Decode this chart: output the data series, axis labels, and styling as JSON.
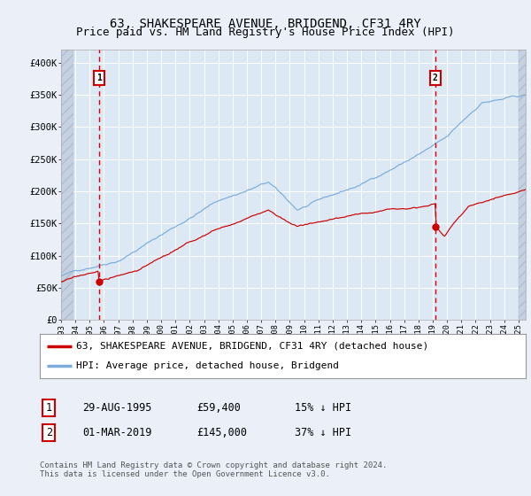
{
  "title": "63, SHAKESPEARE AVENUE, BRIDGEND, CF31 4RY",
  "subtitle": "Price paid vs. HM Land Registry's House Price Index (HPI)",
  "ylim": [
    0,
    420000
  ],
  "yticks": [
    0,
    50000,
    100000,
    150000,
    200000,
    250000,
    300000,
    350000,
    400000
  ],
  "ytick_labels": [
    "£0",
    "£50K",
    "£100K",
    "£150K",
    "£200K",
    "£250K",
    "£300K",
    "£350K",
    "£400K"
  ],
  "hpi_color": "#7aaddb",
  "price_color": "#cc0000",
  "vline_color": "#dd0000",
  "point1_year": 1995.66,
  "point1_value": 59400,
  "point2_year": 2019.17,
  "point2_value": 145000,
  "legend_line1": "63, SHAKESPEARE AVENUE, BRIDGEND, CF31 4RY (detached house)",
  "legend_line2": "HPI: Average price, detached house, Bridgend",
  "table_row1_num": "1",
  "table_row1_date": "29-AUG-1995",
  "table_row1_price": "£59,400",
  "table_row1_hpi": "15% ↓ HPI",
  "table_row2_num": "2",
  "table_row2_date": "01-MAR-2019",
  "table_row2_price": "£145,000",
  "table_row2_hpi": "37% ↓ HPI",
  "footnote": "Contains HM Land Registry data © Crown copyright and database right 2024.\nThis data is licensed under the Open Government Licence v3.0.",
  "bg_color": "#eaeff8",
  "plot_bg_color": "#dce8f4",
  "hatch_color": "#c5d0e0",
  "grid_color": "#ffffff",
  "title_fontsize": 10,
  "subtitle_fontsize": 9,
  "tick_fontsize": 7.5,
  "legend_fontsize": 8,
  "table_fontsize": 8.5
}
